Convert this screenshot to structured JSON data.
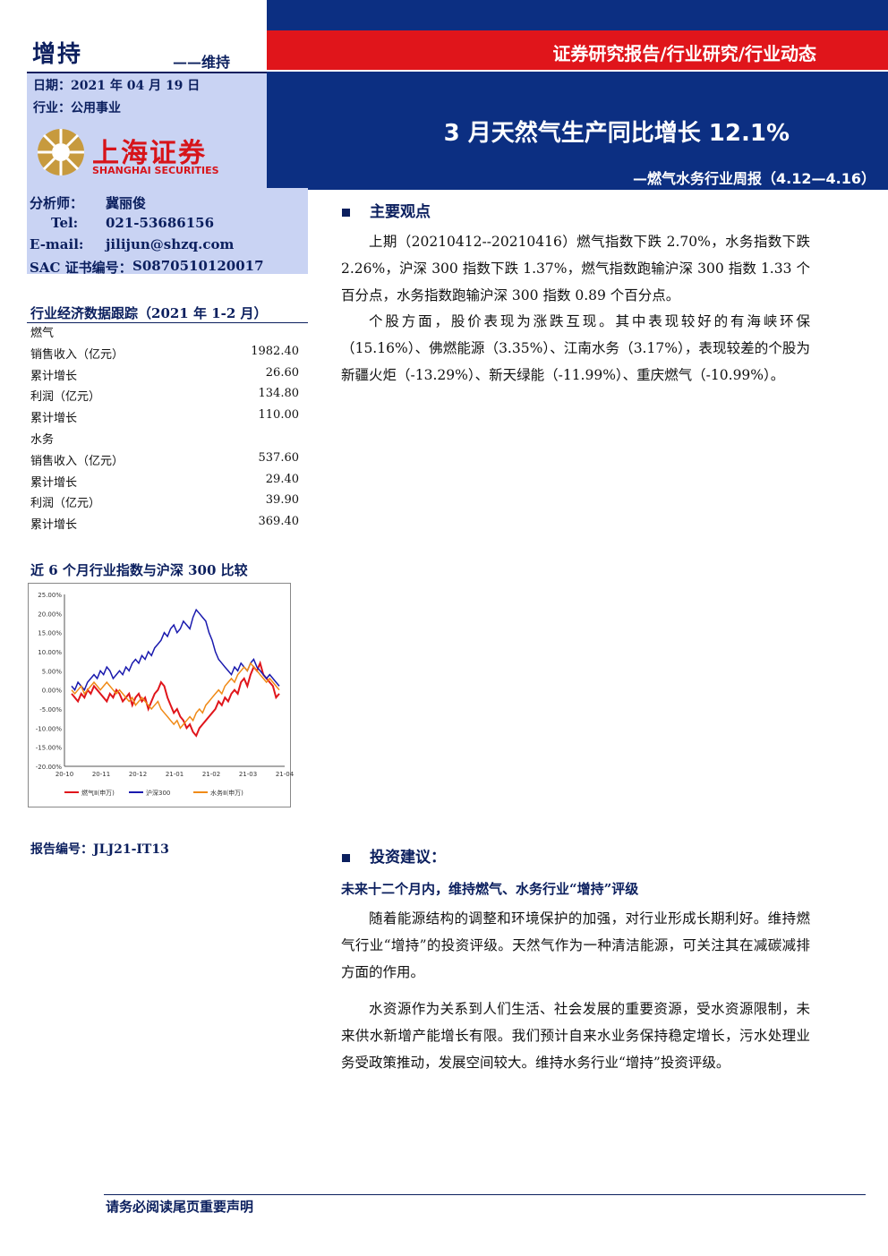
{
  "header": {
    "rating": "增持",
    "rating_prev": "——维持",
    "date": "日期：2021 年 04 月 19 日",
    "industry": "行业：公用事业",
    "logo_cn": "上海证券",
    "logo_en": "SHANGHAI SECURITIES",
    "banner_label": "证券研究报告/行业研究/行业动态",
    "title": "3 月天然气生产同比增长 12.1%",
    "subtitle": "—燃气水务行业周报（4.12—4.16）"
  },
  "analyst": {
    "name_label": "分析师：",
    "name": "冀丽俊",
    "tel_label": "Tel:",
    "tel": "021-53686156",
    "email_label": "E-mail:",
    "email": "jilijun@shzq.com",
    "sac_label": "SAC 证书编号：",
    "sac": "S0870510120017"
  },
  "data_table": {
    "title": "行业经济数据跟踪（2021 年 1-2 月）",
    "rows": [
      {
        "label": "燃气",
        "value": ""
      },
      {
        "label": "销售收入（亿元）",
        "value": "1982.40"
      },
      {
        "label": "累计增长",
        "value": "26.60"
      },
      {
        "label": "利润（亿元）",
        "value": "134.80"
      },
      {
        "label": "累计增长",
        "value": "110.00"
      },
      {
        "label": "水务",
        "value": ""
      },
      {
        "label": "销售收入（亿元）",
        "value": "537.60"
      },
      {
        "label": "累计增长",
        "value": "29.40"
      },
      {
        "label": "利润（亿元）",
        "value": "39.90"
      },
      {
        "label": "累计增长",
        "value": "369.40"
      }
    ]
  },
  "chart_title": "近 6 个月行业指数与沪深 300 比较",
  "chart_data": {
    "type": "line",
    "y_ticks": [
      "25.00%",
      "20.00%",
      "15.00%",
      "10.00%",
      "5.00%",
      "0.00%",
      "-5.00%",
      "-10.00%",
      "-15.00%",
      "-20.00%"
    ],
    "ylim": [
      -20,
      25
    ],
    "x_ticks": [
      "20-10",
      "20-11",
      "20-12",
      "21-01",
      "21-02",
      "21-03",
      "21-04"
    ],
    "series": [
      {
        "name": "燃气Ⅱ(申万)",
        "color": "#e0151b",
        "values": [
          -1,
          -2,
          -3,
          -1,
          -2,
          0,
          -1,
          1,
          0,
          -1,
          -2,
          -3,
          -1,
          -2,
          0,
          -1,
          -3,
          -2,
          -1,
          -4,
          -2,
          -1,
          -3,
          -2,
          -5,
          -3,
          -1,
          0,
          2,
          1,
          -2,
          -4,
          -6,
          -5,
          -7,
          -8,
          -10,
          -9,
          -11,
          -12,
          -10,
          -9,
          -8,
          -7,
          -6,
          -5,
          -3,
          -4,
          -2,
          -3,
          -1,
          0,
          -1,
          2,
          3,
          1,
          4,
          6,
          5,
          7,
          4,
          3,
          2,
          1,
          -2,
          -1
        ]
      },
      {
        "name": "沪深300",
        "color": "#1a1aae",
        "values": [
          1,
          0,
          2,
          1,
          0,
          2,
          3,
          4,
          3,
          5,
          4,
          6,
          5,
          3,
          4,
          5,
          4,
          6,
          5,
          7,
          8,
          7,
          9,
          8,
          10,
          9,
          11,
          12,
          13,
          15,
          14,
          16,
          17,
          15,
          16,
          18,
          17,
          16,
          19,
          21,
          20,
          19,
          18,
          15,
          13,
          10,
          8,
          7,
          6,
          5,
          4,
          6,
          5,
          7,
          6,
          5,
          7,
          8,
          6,
          5,
          4,
          3,
          4,
          3,
          2,
          1
        ]
      },
      {
        "name": "水务Ⅱ(申万)",
        "color": "#f08a17",
        "values": [
          0,
          -1,
          0,
          1,
          -1,
          0,
          1,
          2,
          1,
          0,
          1,
          2,
          1,
          0,
          -1,
          0,
          -1,
          -2,
          -3,
          -2,
          -4,
          -3,
          -2,
          -3,
          -4,
          -5,
          -4,
          -3,
          -5,
          -6,
          -7,
          -8,
          -9,
          -8,
          -10,
          -9,
          -8,
          -7,
          -8,
          -6,
          -5,
          -6,
          -4,
          -3,
          -2,
          -1,
          0,
          -1,
          1,
          2,
          3,
          2,
          4,
          5,
          6,
          5,
          7,
          6,
          5,
          4,
          3,
          2,
          3,
          2,
          1,
          0
        ]
      }
    ]
  },
  "report_no": "报告编号：JLJ21-IT13",
  "section1": {
    "heading": "主要观点",
    "p1": "上期（20210412--20210416）燃气指数下跌 2.70%，水务指数下跌 2.26%，沪深 300 指数下跌 1.37%，燃气指数跑输沪深 300 指数 1.33 个百分点，水务指数跑输沪深 300 指数 0.89 个百分点。",
    "p2": "个股方面，股价表现为涨跌互现。其中表现较好的有海峡环保（15.16%）、佛燃能源（3.35%）、江南水务（3.17%），表现较差的个股为新疆火炬（-13.29%）、新天绿能（-11.99%）、重庆燃气（-10.99%）。"
  },
  "section2": {
    "heading": "投资建议：",
    "subheading": "未来十二个月内，维持燃气、水务行业“增持”评级",
    "p1": "随着能源结构的调整和环境保护的加强，对行业形成长期利好。维持燃气行业“增持”的投资评级。天然气作为一种清洁能源，可关注其在减碳减排方面的作用。",
    "p2": "水资源作为关系到人们生活、社会发展的重要资源，受水资源限制，未来供水新增产能增长有限。我们预计自来水业务保持稳定增长，污水处理业务受政策推动，发展空间较大。维持水务行业“增持”投资评级。"
  },
  "footer": "请务必阅读尾页重要声明"
}
